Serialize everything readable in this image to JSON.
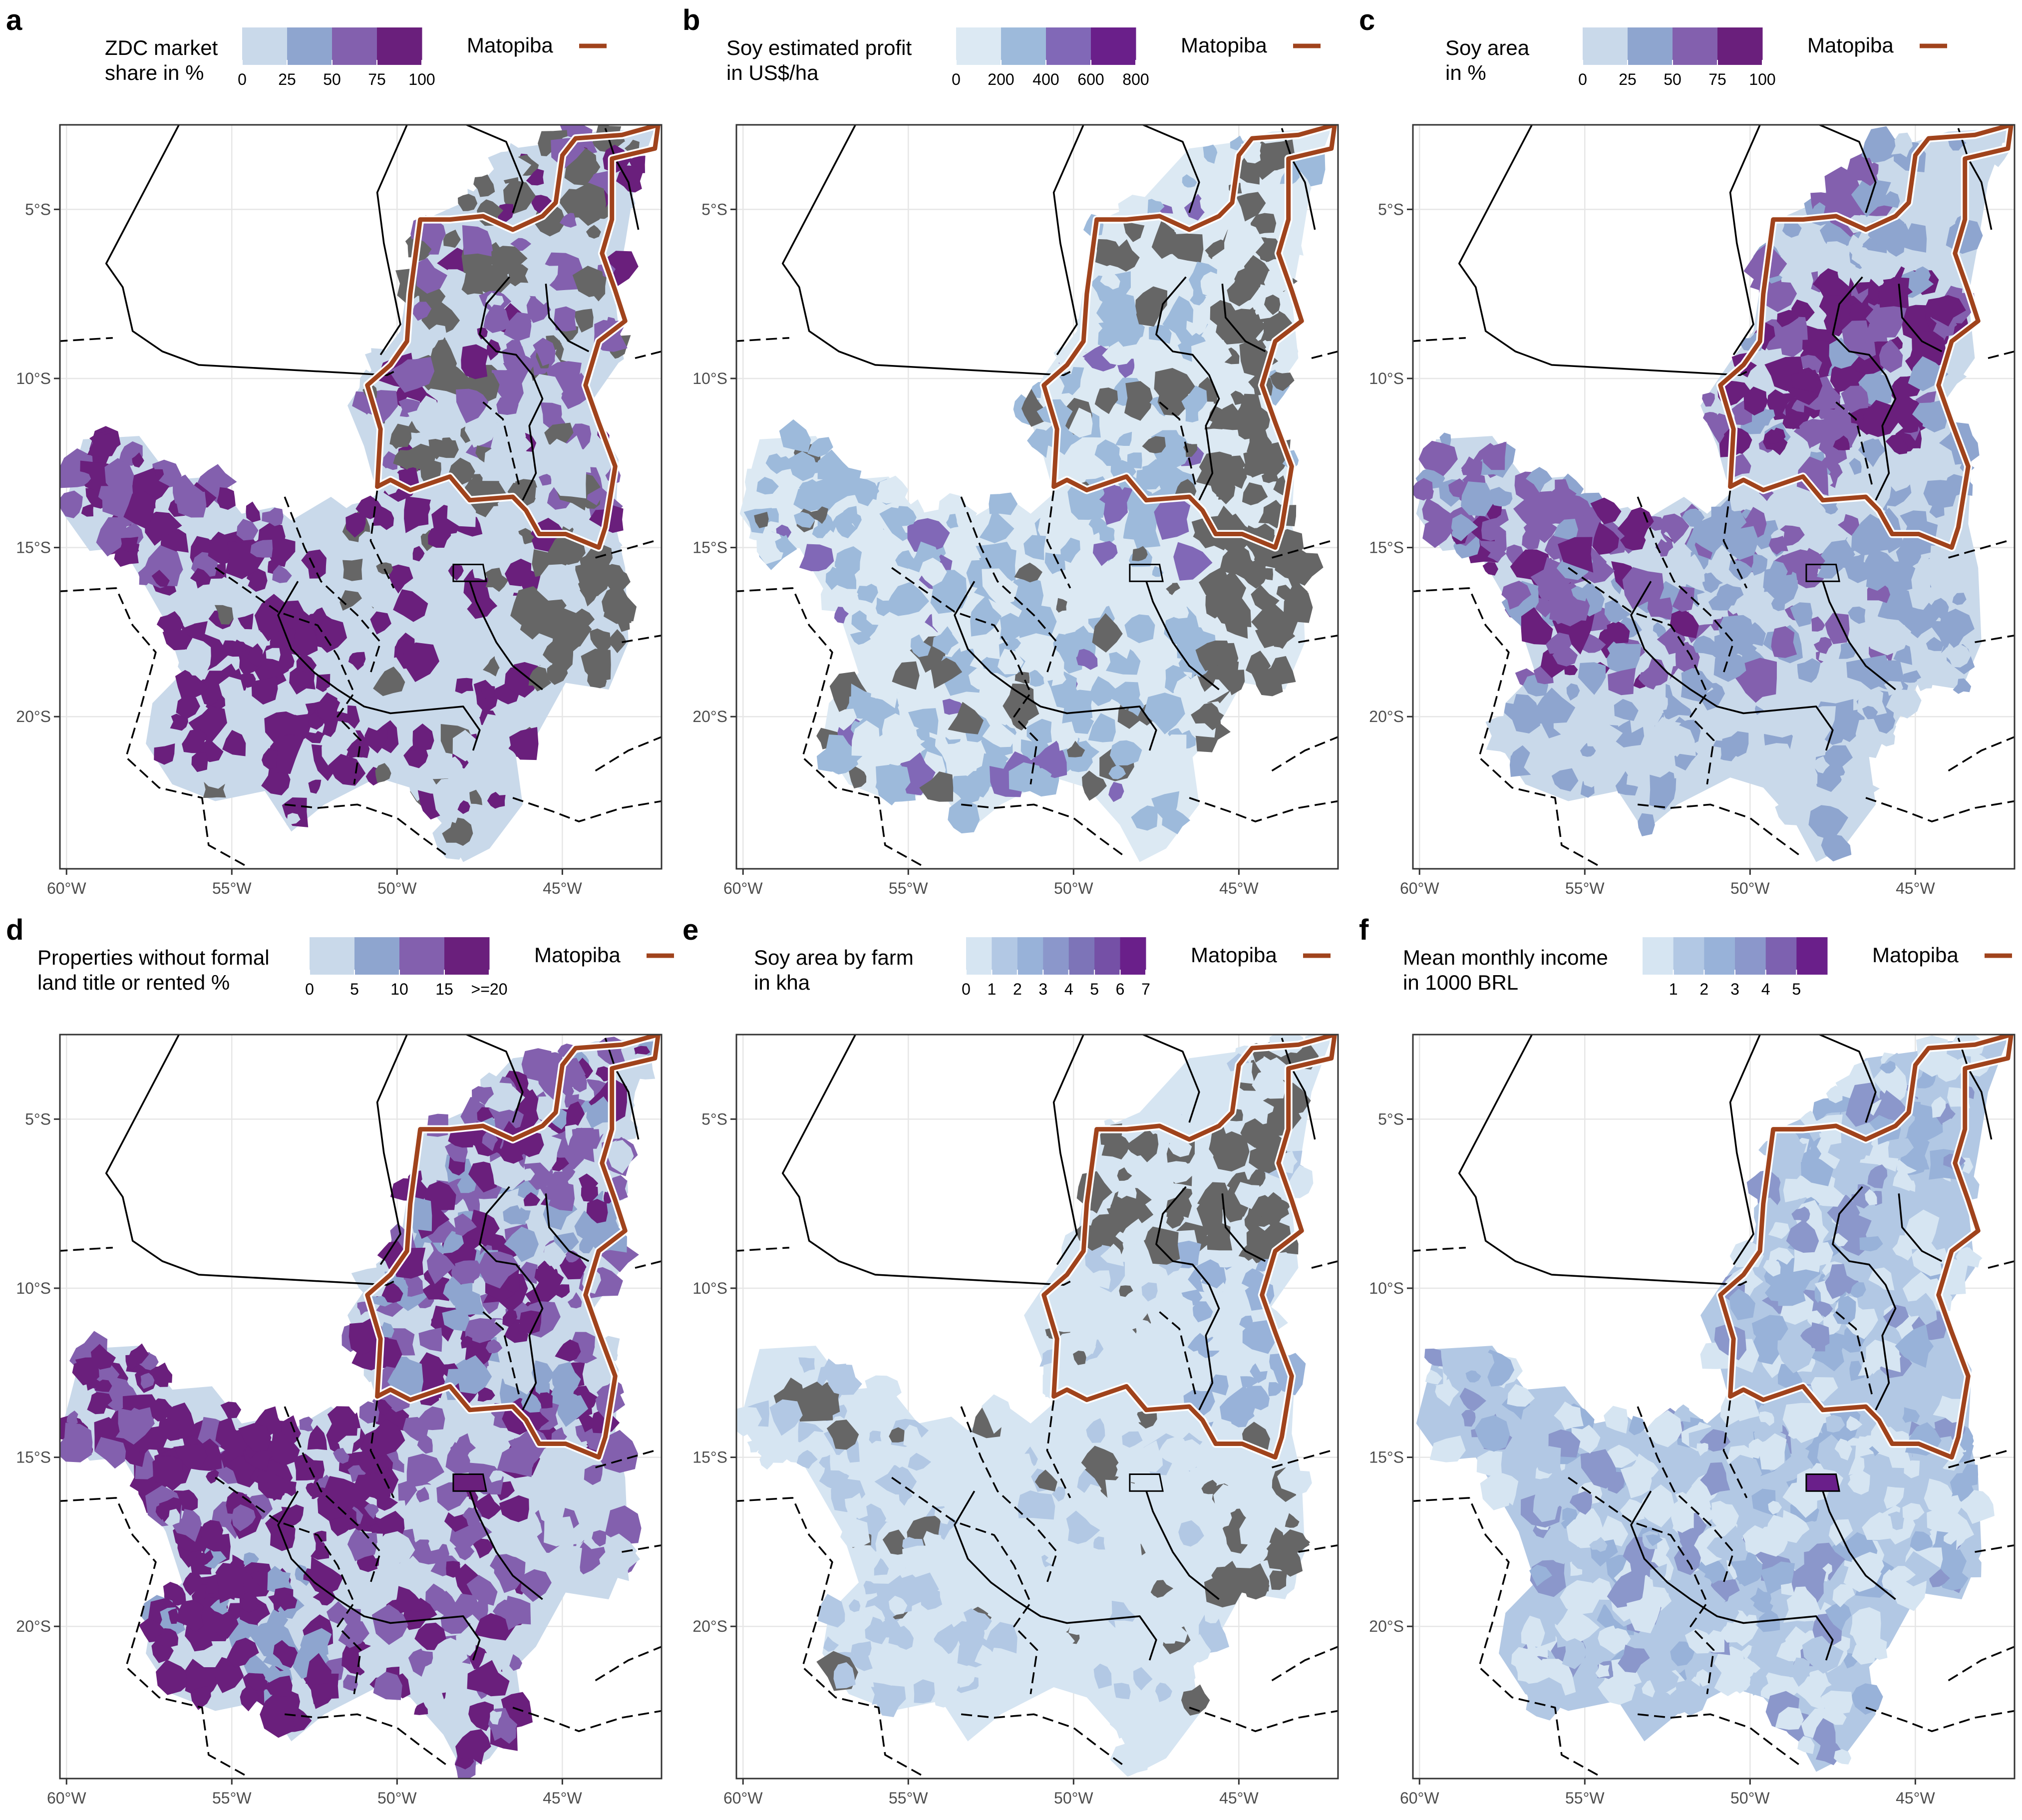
{
  "figure": {
    "panels": [
      {
        "letter": "a",
        "legend_title_lines": [
          "ZDC market",
          "share in %"
        ],
        "legend_ticks": [
          "0",
          "25",
          "50",
          "75",
          "100"
        ],
        "legend_colors": [
          "#c9d9ea",
          "#8ea5cf",
          "#8360ae",
          "#6a1f7c"
        ],
        "outline_label": "Matopiba",
        "style": "zdc"
      },
      {
        "letter": "b",
        "legend_title_lines": [
          "Soy estimated profit",
          "in US$/ha"
        ],
        "legend_ticks": [
          "0",
          "200",
          "400",
          "600",
          "800"
        ],
        "legend_colors": [
          "#dce9f3",
          "#9dbadb",
          "#8168b7",
          "#6a1f8a"
        ],
        "outline_label": "Matopiba",
        "style": "profit"
      },
      {
        "letter": "c",
        "legend_title_lines": [
          "Soy area",
          "in %"
        ],
        "legend_ticks": [
          "0",
          "25",
          "50",
          "75",
          "100"
        ],
        "legend_colors": [
          "#c9d9ea",
          "#8ea5cf",
          "#8360ae",
          "#6a1f7c"
        ],
        "outline_label": "Matopiba",
        "style": "soyarea"
      },
      {
        "letter": "d",
        "legend_title_lines": [
          "Properties without formal",
          "land title or rented %"
        ],
        "legend_ticks": [
          "0",
          "5",
          "10",
          "15",
          ">=20"
        ],
        "legend_colors": [
          "#c9d9ea",
          "#8ea5cf",
          "#8360ae",
          "#6a1f7c"
        ],
        "outline_label": "Matopiba",
        "style": "titles"
      },
      {
        "letter": "e",
        "legend_title_lines": [
          "Soy area by farm",
          "in kha"
        ],
        "legend_ticks": [
          "0",
          "1",
          "2",
          "3",
          "4",
          "5",
          "6",
          "7"
        ],
        "legend_colors": [
          "#d6e5f2",
          "#b2c8e4",
          "#98b2d9",
          "#8b97cb",
          "#7d74b8",
          "#7550a6",
          "#6a1f8a"
        ],
        "outline_label": "Matopiba",
        "style": "farm"
      },
      {
        "letter": "f",
        "legend_title_lines": [
          "Mean monthly income",
          "in 1000 BRL"
        ],
        "legend_ticks": [
          "1",
          "2",
          "3",
          "4",
          "5"
        ],
        "legend_colors": [
          "#d6e5f2",
          "#b2c8e4",
          "#98b2d9",
          "#8b97cb",
          "#7d61b0",
          "#6a1f8a"
        ],
        "outline_label": "Matopiba",
        "style": "income"
      }
    ],
    "x_ticks": [
      "60°W",
      "55°W",
      "50°W",
      "45°W"
    ],
    "y_ticks": [
      "5°S",
      "10°S",
      "15°S",
      "20°S"
    ],
    "colors": {
      "matopiba_outline": "#a0431c",
      "no_data": "#666666",
      "background": "#ffffff",
      "gridline": "#e6e6e6"
    }
  }
}
